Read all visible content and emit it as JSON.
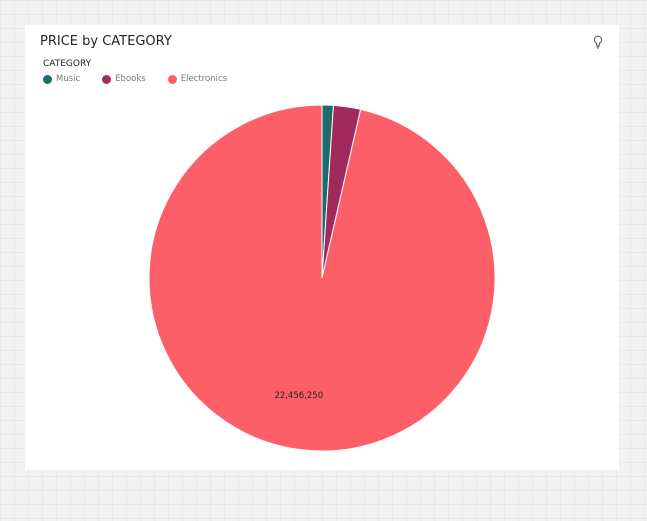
{
  "visual": {
    "title": "PRICE by CATEGORY",
    "insight_icon": "lightbulb-icon"
  },
  "chart_data": {
    "type": "pie",
    "title": "PRICE by CATEGORY",
    "legend_title": "CATEGORY",
    "legend_position": "top-left",
    "slices": [
      {
        "label": "Music",
        "value": 245000,
        "color": "#1f6b6b"
      },
      {
        "label": "Ebooks",
        "value": 590000,
        "color": "#a02a5e"
      },
      {
        "label": "Electronics",
        "value": 22456250,
        "color": "#fd5f69"
      }
    ],
    "data_labels": [
      {
        "slice": "Electronics",
        "text": "22,456,250"
      }
    ]
  }
}
